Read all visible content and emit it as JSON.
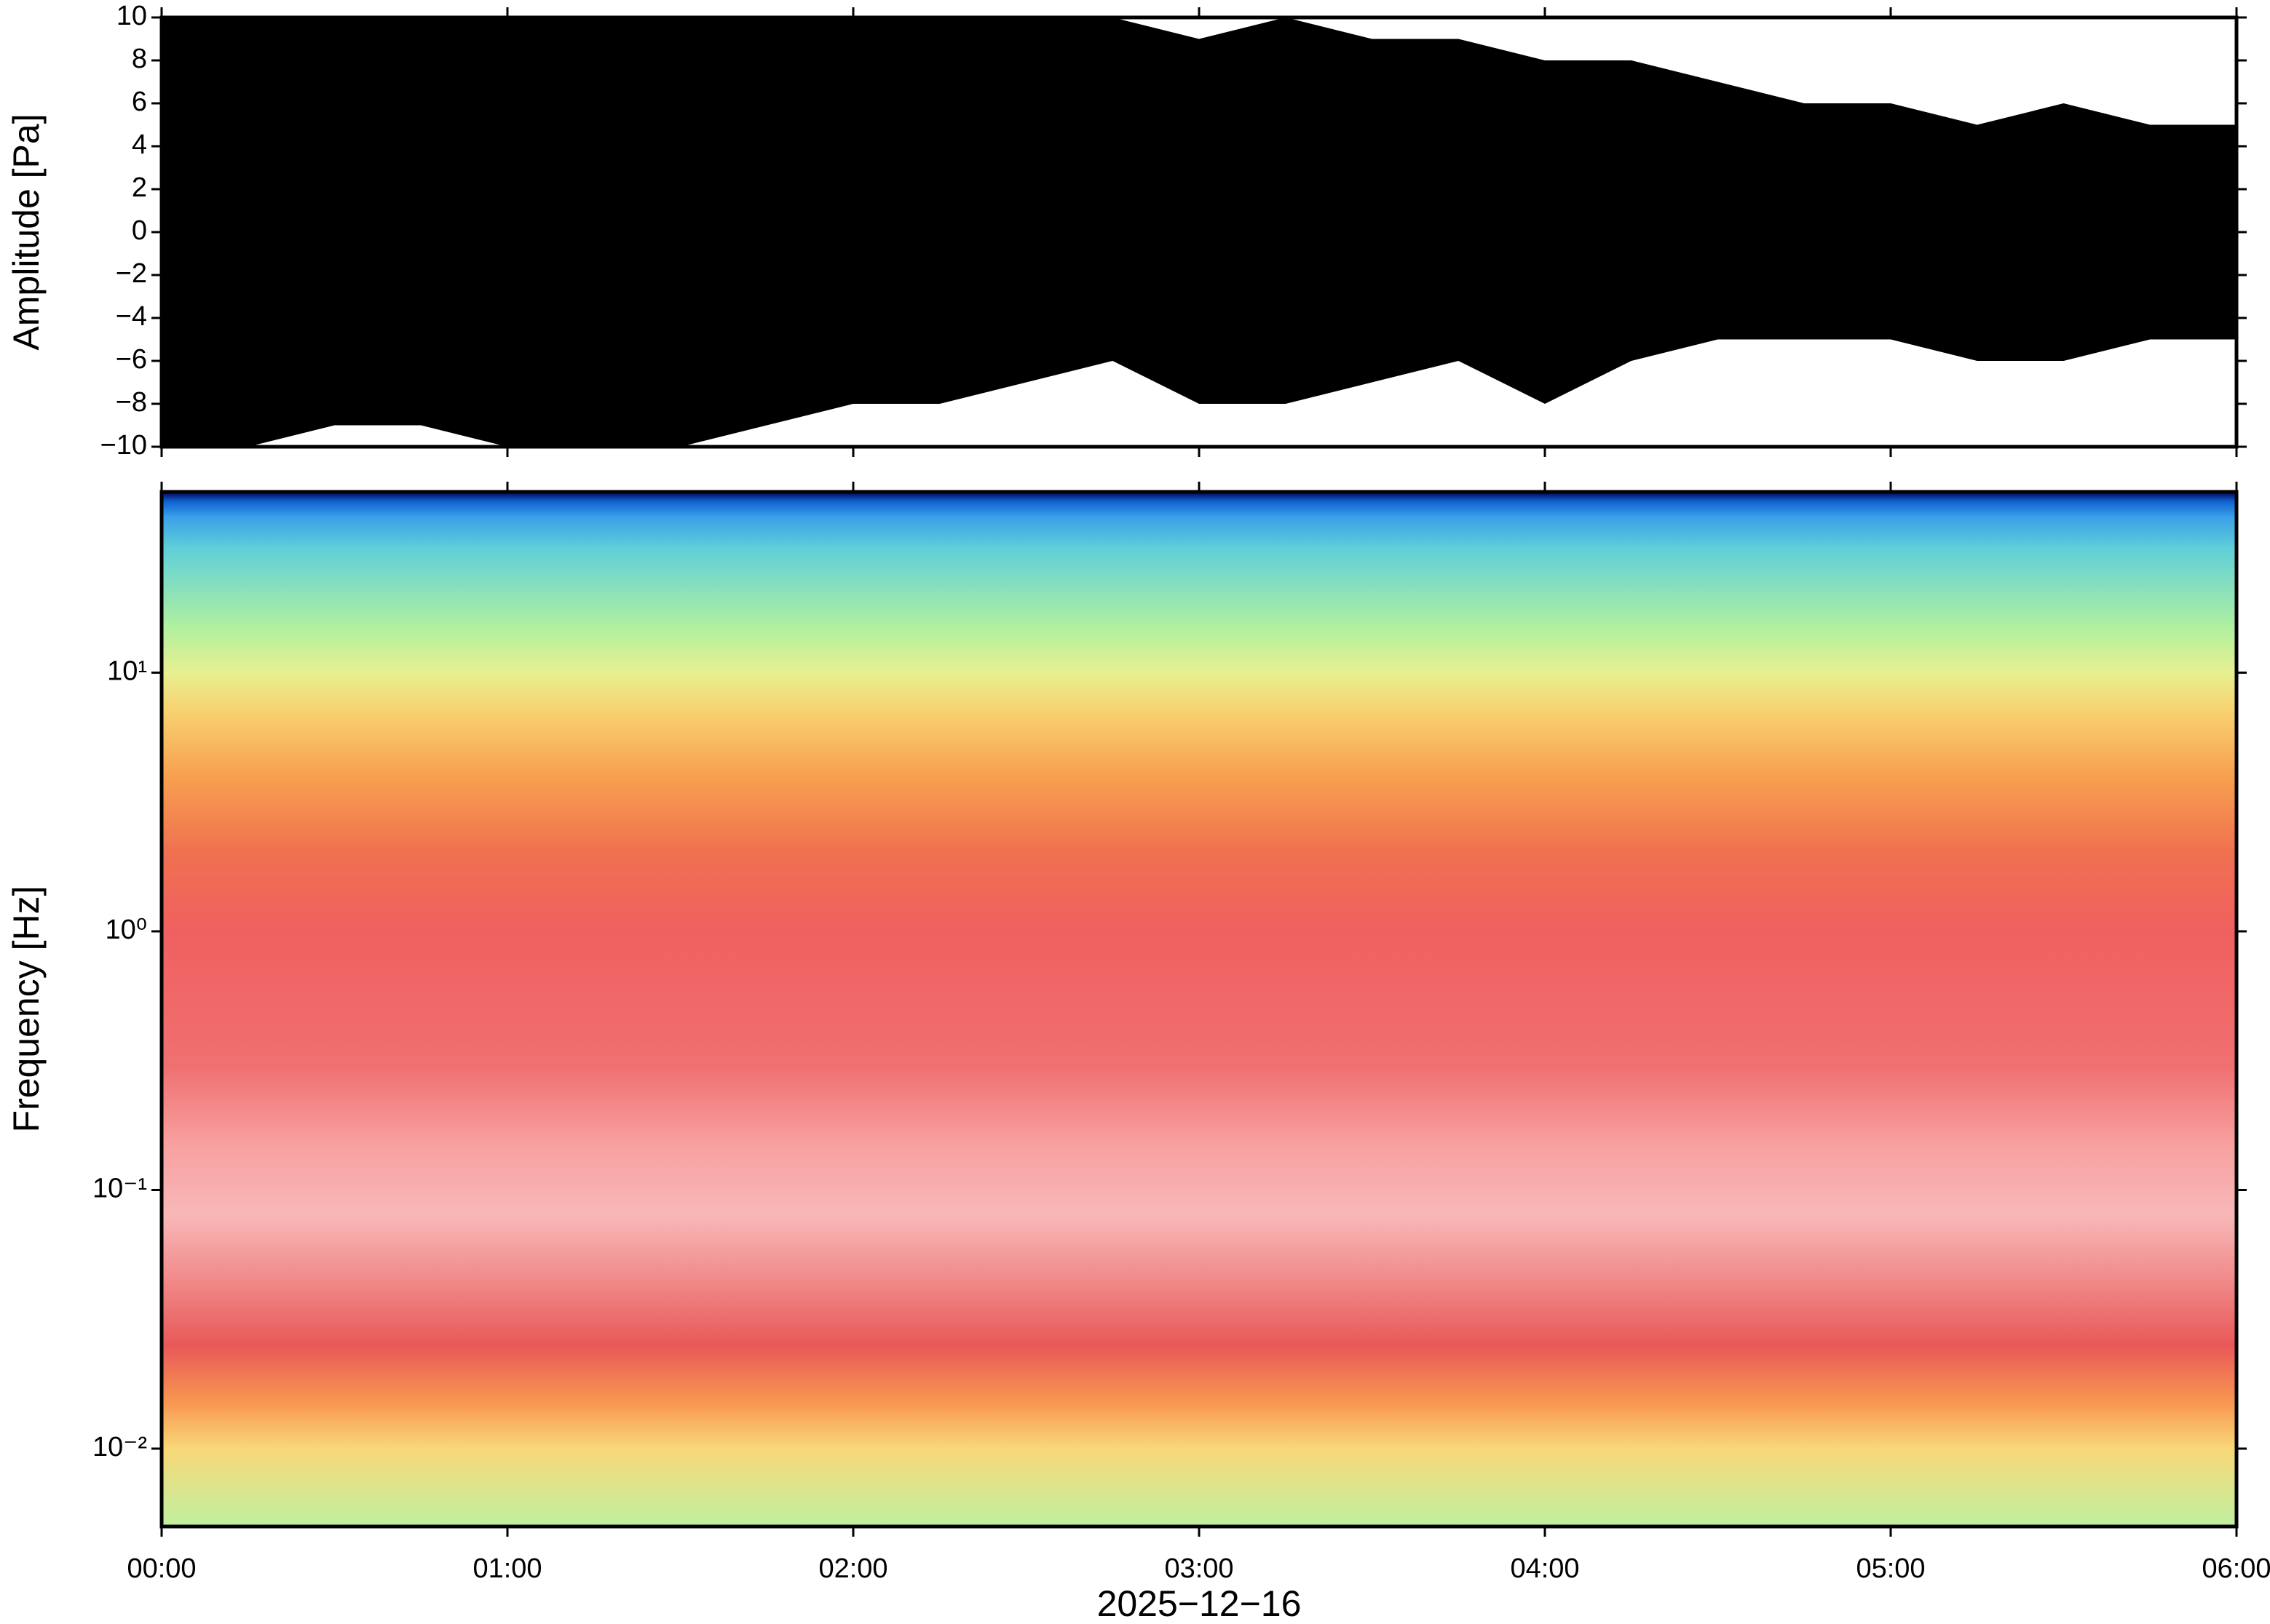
{
  "chart_data": [
    {
      "type": "area",
      "ylabel": "Amplitude [Pa]",
      "x": [
        0,
        0.25,
        0.5,
        0.75,
        1,
        1.25,
        1.5,
        1.75,
        2,
        2.25,
        2.5,
        2.75,
        3,
        3.25,
        3.5,
        3.75,
        4,
        4.25,
        4.5,
        4.75,
        5,
        5.25,
        5.5,
        5.75,
        6
      ],
      "series": [
        {
          "color": "#000000",
          "values": [
            10,
            10,
            10,
            10,
            10,
            10,
            10,
            10,
            10,
            10,
            10,
            10,
            9,
            10,
            9,
            9,
            8,
            8,
            7,
            6,
            6,
            5,
            6,
            5,
            5
          ]
        },
        {
          "color": "#000000",
          "values": [
            -10,
            -10,
            -9,
            -9,
            -10,
            -10,
            -10,
            -9,
            -8,
            -8,
            -7,
            -6,
            -8,
            -8,
            -7,
            -6,
            -8,
            -6,
            -5,
            -5,
            -5,
            -6,
            -6,
            -5,
            -5
          ]
        }
      ],
      "xlim": [
        0,
        6
      ],
      "ylim": [
        -10,
        10
      ],
      "yticks": [
        {
          "value": -10,
          "label": "−10"
        },
        {
          "value": -8,
          "label": "−8"
        },
        {
          "value": -6,
          "label": "−6"
        },
        {
          "value": -4,
          "label": "−4"
        },
        {
          "value": -2,
          "label": "−2"
        },
        0,
        2,
        4,
        6,
        8,
        10
      ]
    },
    {
      "type": "spectrogram",
      "ylabel": "Frequency [Hz]",
      "xlabel": "2025−12−16",
      "log_y": true,
      "xlim": [
        0,
        6
      ],
      "ylim": [
        0.005,
        50
      ],
      "xticks": [
        {
          "value": 0,
          "label": "00:00"
        },
        {
          "value": 1,
          "label": "01:00"
        },
        {
          "value": 2,
          "label": "02:00"
        },
        {
          "value": 3,
          "label": "03:00"
        },
        {
          "value": 4,
          "label": "04:00"
        },
        {
          "value": 5,
          "label": "05:00"
        },
        {
          "value": 6,
          "label": "06:00"
        }
      ],
      "yticks": [
        {
          "value": 0.01,
          "label": "10⁻²"
        },
        {
          "value": 0.1,
          "label": "10⁻¹"
        },
        {
          "value": 1,
          "label": "10⁰"
        },
        {
          "value": 10,
          "label": "10¹"
        }
      ],
      "color_stops": [
        {
          "frequency": 50,
          "color": "#000050"
        },
        {
          "frequency": 46,
          "color": "#1060d0"
        },
        {
          "frequency": 40,
          "color": "#3aa0e8"
        },
        {
          "frequency": 30,
          "color": "#60d0d8"
        },
        {
          "frequency": 15,
          "color": "#b0f0a0"
        },
        {
          "frequency": 10,
          "color": "#e8f090"
        },
        {
          "frequency": 7,
          "color": "#f8d070"
        },
        {
          "frequency": 4,
          "color": "#f8a050"
        },
        {
          "frequency": 2,
          "color": "#f07050"
        },
        {
          "frequency": 1,
          "color": "#f06060"
        },
        {
          "frequency": 0.3,
          "color": "#f07070"
        },
        {
          "frequency": 0.15,
          "color": "#f8a0a0"
        },
        {
          "frequency": 0.08,
          "color": "#f8b8b8"
        },
        {
          "frequency": 0.04,
          "color": "#f08080"
        },
        {
          "frequency": 0.025,
          "color": "#e85858"
        },
        {
          "frequency": 0.015,
          "color": "#f89850"
        },
        {
          "frequency": 0.01,
          "color": "#f8d878"
        },
        {
          "frequency": 0.005,
          "color": "#c0f0a0"
        }
      ]
    }
  ]
}
